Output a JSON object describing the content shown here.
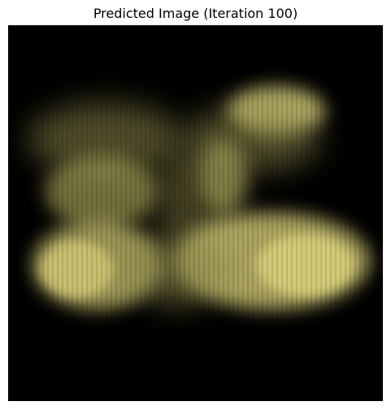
{
  "figure": {
    "title": "Predicted Image (Iteration 100)"
  },
  "image": {
    "background_color": "#000000",
    "blob_color": "#d7cf78",
    "blob_dim_color": "#8f8a4b"
  }
}
